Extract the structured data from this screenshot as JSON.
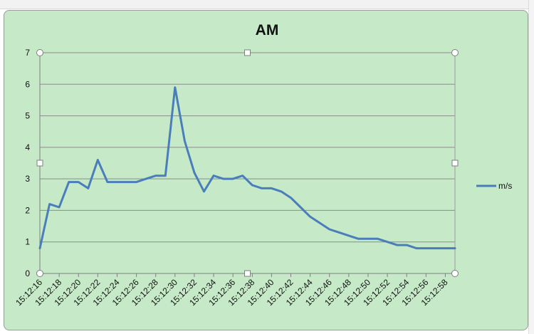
{
  "chart_data": {
    "type": "line",
    "title": "AM",
    "xlabel": "",
    "ylabel": "",
    "ylim": [
      0,
      7
    ],
    "y_ticks": [
      "0",
      "1",
      "2",
      "3",
      "4",
      "5",
      "6",
      "7"
    ],
    "grid": true,
    "legend_position": "right",
    "x_tick_labels": [
      "15:12:16",
      "15:12:18",
      "15:12:20",
      "15:12:22",
      "15:12:24",
      "15:12:26",
      "15:12:28",
      "15:12:30",
      "15:12:32",
      "15:12:34",
      "15:12:36",
      "15:12:38",
      "15:12:40",
      "15:12:42",
      "15:12:44",
      "15:12:46",
      "15:12:48",
      "15:12:50",
      "15:12:52",
      "15:12:54",
      "15:12:56",
      "15:12:58"
    ],
    "series": [
      {
        "name": "m/s",
        "color": "#4a7ebb",
        "x": [
          "15:12:16",
          "15:12:17",
          "15:12:18",
          "15:12:19",
          "15:12:20",
          "15:12:21",
          "15:12:22",
          "15:12:23",
          "15:12:24",
          "15:12:25",
          "15:12:26",
          "15:12:27",
          "15:12:28",
          "15:12:29",
          "15:12:30",
          "15:12:31",
          "15:12:32",
          "15:12:33",
          "15:12:34",
          "15:12:35",
          "15:12:36",
          "15:12:37",
          "15:12:38",
          "15:12:39",
          "15:12:40",
          "15:12:41",
          "15:12:42",
          "15:12:43",
          "15:12:44",
          "15:12:45",
          "15:12:46",
          "15:12:47",
          "15:12:48",
          "15:12:49",
          "15:12:50",
          "15:12:51",
          "15:12:52",
          "15:12:53",
          "15:12:54",
          "15:12:55",
          "15:12:56",
          "15:12:57",
          "15:12:58",
          "15:12:59"
        ],
        "values": [
          0.8,
          2.2,
          2.1,
          2.9,
          2.9,
          2.7,
          3.6,
          2.9,
          2.9,
          2.9,
          2.9,
          3.0,
          3.1,
          3.1,
          5.9,
          4.2,
          3.2,
          2.6,
          3.1,
          3.0,
          3.0,
          3.1,
          2.8,
          2.7,
          2.7,
          2.6,
          2.4,
          2.1,
          1.8,
          1.6,
          1.4,
          1.3,
          1.2,
          1.1,
          1.1,
          1.1,
          1.0,
          0.9,
          0.9,
          0.8,
          0.8,
          0.8,
          0.8,
          0.8
        ]
      }
    ]
  },
  "colors": {
    "chart_background": "#c6e9c8",
    "gridline": "#8c8c8c",
    "series_line": "#4a7ebb"
  }
}
